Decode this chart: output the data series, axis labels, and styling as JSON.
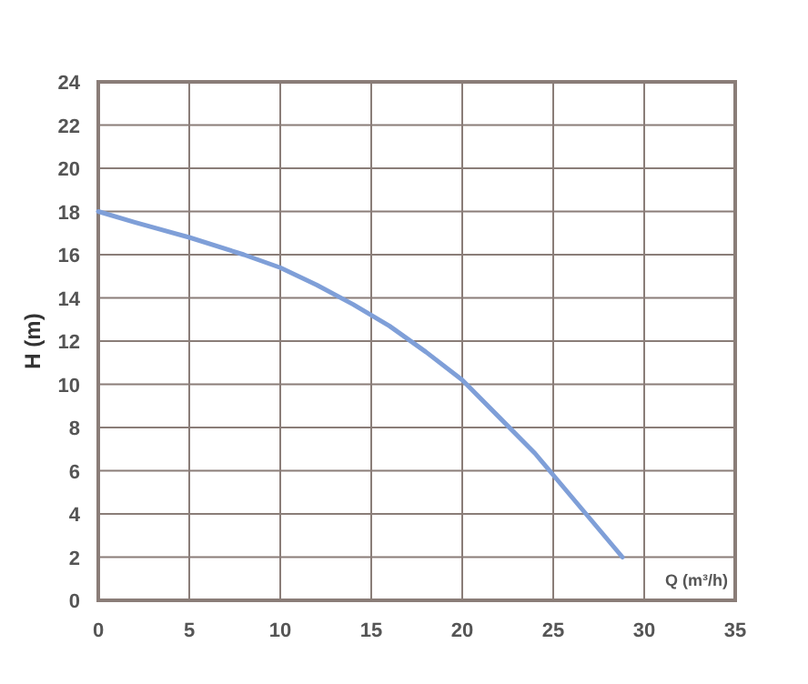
{
  "chart_data": {
    "type": "line",
    "xlabel": "Q (m³/h)",
    "ylabel": "H (m)",
    "x": [
      0,
      2,
      5,
      8,
      10,
      12,
      14,
      16,
      18,
      20,
      22,
      24,
      25,
      27,
      28.8
    ],
    "series": [
      {
        "color": "#7f9fd8",
        "values": [
          18,
          17.5,
          16.8,
          16,
          15.4,
          14.6,
          13.7,
          12.7,
          11.5,
          10.2,
          8.5,
          6.8,
          5.8,
          3.8,
          2
        ]
      }
    ],
    "xlim": [
      0,
      35
    ],
    "xticks": [
      0,
      5,
      10,
      15,
      20,
      25,
      30,
      35
    ],
    "ylim": [
      0,
      24
    ],
    "yticks": [
      0,
      2,
      4,
      6,
      8,
      10,
      12,
      14,
      16,
      18,
      20,
      22,
      24
    ],
    "grid": true,
    "marker": "none",
    "line_style": "solid"
  }
}
